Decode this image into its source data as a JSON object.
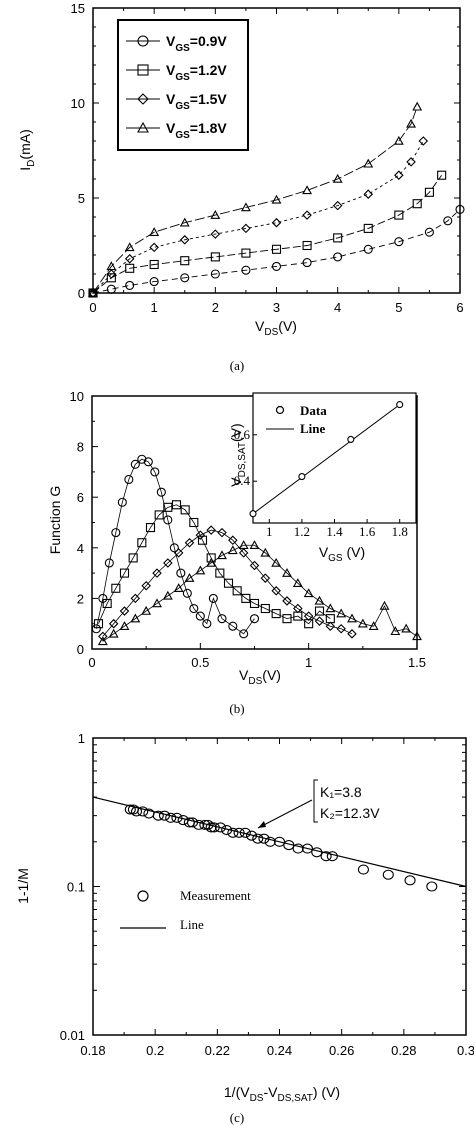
{
  "figure_captions": [
    "(a)",
    "(b)",
    "(c)"
  ],
  "chart_data": [
    {
      "id": "a",
      "type": "line",
      "xlabel": "V_DS (V)",
      "ylabel": "I_D (mA)",
      "xlim": [
        0,
        6
      ],
      "ylim": [
        0,
        15
      ],
      "xticks": [
        "0",
        "1",
        "2",
        "3",
        "4",
        "5",
        "6"
      ],
      "yticks": [
        "0",
        "5",
        "10",
        "15"
      ],
      "legend_position": "top-left",
      "series": [
        {
          "name": "V_GS=0.9V",
          "marker": "circle",
          "x": [
            0,
            0.3,
            0.6,
            1.0,
            1.5,
            2.0,
            2.5,
            3.0,
            3.5,
            4.0,
            4.5,
            5.0,
            5.5,
            5.8,
            6.0
          ],
          "y": [
            0,
            0.2,
            0.4,
            0.6,
            0.8,
            1.0,
            1.2,
            1.4,
            1.6,
            1.9,
            2.3,
            2.7,
            3.2,
            3.8,
            4.4
          ]
        },
        {
          "name": "V_GS=1.2V",
          "marker": "square",
          "x": [
            0,
            0.3,
            0.6,
            1.0,
            1.5,
            2.0,
            2.5,
            3.0,
            3.5,
            4.0,
            4.5,
            5.0,
            5.3,
            5.5,
            5.7
          ],
          "y": [
            0,
            0.8,
            1.3,
            1.5,
            1.7,
            1.9,
            2.1,
            2.3,
            2.5,
            2.9,
            3.4,
            4.1,
            4.7,
            5.3,
            6.2
          ]
        },
        {
          "name": "V_GS=1.5V",
          "marker": "diamond",
          "x": [
            0,
            0.3,
            0.6,
            1.0,
            1.5,
            2.0,
            2.5,
            3.0,
            3.5,
            4.0,
            4.5,
            5.0,
            5.2,
            5.4
          ],
          "y": [
            0,
            1.0,
            1.8,
            2.4,
            2.8,
            3.1,
            3.4,
            3.7,
            4.1,
            4.6,
            5.2,
            6.2,
            6.9,
            8.0
          ]
        },
        {
          "name": "V_GS=1.8V",
          "marker": "triangle",
          "x": [
            0,
            0.3,
            0.6,
            1.0,
            1.5,
            2.0,
            2.5,
            3.0,
            3.5,
            4.0,
            4.5,
            5.0,
            5.2,
            5.3
          ],
          "y": [
            0,
            1.4,
            2.4,
            3.2,
            3.7,
            4.1,
            4.5,
            4.9,
            5.4,
            6.0,
            6.8,
            8.0,
            8.9,
            9.8
          ]
        }
      ]
    },
    {
      "id": "b",
      "type": "scatter",
      "xlabel": "V_DS(V)",
      "ylabel": "Function G",
      "xlim": [
        0,
        1.5
      ],
      "ylim": [
        0,
        10
      ],
      "xticks": [
        "0",
        "0.5",
        "1",
        "1.5"
      ],
      "yticks": [
        "0",
        "2",
        "4",
        "6",
        "8",
        "10"
      ],
      "series": [
        {
          "marker": "circle",
          "x": [
            0.02,
            0.05,
            0.08,
            0.11,
            0.14,
            0.17,
            0.2,
            0.23,
            0.26,
            0.29,
            0.32,
            0.35,
            0.38,
            0.41,
            0.44,
            0.47,
            0.5,
            0.53,
            0.56,
            0.6,
            0.65,
            0.7,
            0.75
          ],
          "y": [
            0.8,
            2.0,
            3.4,
            4.6,
            5.8,
            6.7,
            7.3,
            7.5,
            7.4,
            7.0,
            6.2,
            5.1,
            4.0,
            3.0,
            2.2,
            1.6,
            1.3,
            1.0,
            2.0,
            1.2,
            0.9,
            0.6,
            1.2
          ]
        },
        {
          "marker": "square",
          "x": [
            0.03,
            0.07,
            0.11,
            0.15,
            0.19,
            0.23,
            0.27,
            0.31,
            0.35,
            0.39,
            0.43,
            0.47,
            0.51,
            0.55,
            0.59,
            0.63,
            0.67,
            0.71,
            0.75,
            0.8,
            0.85,
            0.9,
            0.95,
            1.0,
            1.05,
            1.1
          ],
          "y": [
            1.0,
            1.8,
            2.4,
            3.0,
            3.6,
            4.2,
            4.8,
            5.3,
            5.6,
            5.7,
            5.5,
            5.0,
            4.3,
            3.6,
            3.0,
            2.6,
            2.3,
            2.0,
            1.8,
            1.6,
            1.4,
            1.2,
            1.3,
            1.0,
            1.5,
            1.2
          ]
        },
        {
          "marker": "diamond",
          "x": [
            0.05,
            0.1,
            0.15,
            0.2,
            0.25,
            0.3,
            0.35,
            0.4,
            0.45,
            0.5,
            0.55,
            0.6,
            0.65,
            0.7,
            0.75,
            0.8,
            0.85,
            0.9,
            0.95,
            1.0,
            1.05,
            1.1,
            1.15,
            1.2
          ],
          "y": [
            0.5,
            1.0,
            1.5,
            2.0,
            2.5,
            3.0,
            3.4,
            3.8,
            4.2,
            4.5,
            4.7,
            4.6,
            4.3,
            3.8,
            3.3,
            2.8,
            2.3,
            1.9,
            1.6,
            1.3,
            1.1,
            0.9,
            0.8,
            0.6
          ]
        },
        {
          "marker": "triangle",
          "x": [
            0.05,
            0.1,
            0.15,
            0.2,
            0.25,
            0.3,
            0.35,
            0.4,
            0.45,
            0.5,
            0.55,
            0.6,
            0.65,
            0.7,
            0.75,
            0.8,
            0.85,
            0.9,
            0.95,
            1.0,
            1.05,
            1.1,
            1.15,
            1.2,
            1.25,
            1.3,
            1.35,
            1.4,
            1.45,
            1.5
          ],
          "y": [
            0.3,
            0.6,
            0.9,
            1.2,
            1.5,
            1.8,
            2.1,
            2.4,
            2.8,
            3.1,
            3.4,
            3.7,
            3.9,
            4.1,
            4.1,
            3.8,
            3.4,
            3.0,
            2.6,
            2.2,
            1.9,
            1.6,
            1.4,
            1.2,
            1.0,
            0.9,
            1.7,
            0.7,
            0.8,
            0.5
          ]
        }
      ],
      "inset": {
        "type": "scatter",
        "xlabel": "V_GS (V)",
        "ylabel": "V_DS,SAT(V)",
        "xlim": [
          0.9,
          1.9
        ],
        "ylim": [
          0.22,
          0.78
        ],
        "xticks": [
          "1",
          "1.2",
          "1.4",
          "1.6",
          "1.8"
        ],
        "yticks": [
          "0.4",
          "0.6"
        ],
        "legend": [
          "Data",
          "Line"
        ],
        "data_x": [
          0.9,
          1.2,
          1.5,
          1.8
        ],
        "data_y": [
          0.26,
          0.42,
          0.58,
          0.73
        ],
        "line_x": [
          0.9,
          1.8
        ],
        "line_y": [
          0.26,
          0.73
        ]
      }
    },
    {
      "id": "c",
      "type": "scatter",
      "xlabel": "1/(V_DS-V_DS,SAT) (V)",
      "ylabel": "1-1/M",
      "xlim": [
        0.18,
        0.3
      ],
      "ylim": [
        0.01,
        1
      ],
      "yscale": "log",
      "xticks": [
        "0.18",
        "0.2",
        "0.22",
        "0.24",
        "0.26",
        "0.28",
        "0.3"
      ],
      "yticks": [
        "0.01",
        "0.1",
        "1"
      ],
      "legend": [
        "Measurement",
        "Line"
      ],
      "annotation": [
        "K₁=3.8",
        "K₂=12.3V"
      ],
      "measurement_x": [
        0.192,
        0.193,
        0.194,
        0.196,
        0.198,
        0.201,
        0.203,
        0.205,
        0.207,
        0.209,
        0.211,
        0.212,
        0.214,
        0.216,
        0.217,
        0.218,
        0.219,
        0.221,
        0.223,
        0.225,
        0.227,
        0.229,
        0.231,
        0.233,
        0.235,
        0.237,
        0.24,
        0.243,
        0.246,
        0.249,
        0.252,
        0.255,
        0.257,
        0.267,
        0.275,
        0.282,
        0.289
      ],
      "measurement_y": [
        0.33,
        0.33,
        0.32,
        0.32,
        0.31,
        0.3,
        0.3,
        0.29,
        0.29,
        0.28,
        0.27,
        0.27,
        0.26,
        0.26,
        0.26,
        0.25,
        0.25,
        0.25,
        0.24,
        0.23,
        0.23,
        0.23,
        0.22,
        0.21,
        0.21,
        0.2,
        0.2,
        0.19,
        0.18,
        0.18,
        0.17,
        0.16,
        0.16,
        0.13,
        0.12,
        0.11,
        0.1
      ],
      "line_x": [
        0.18,
        0.3
      ],
      "line_y": [
        0.4,
        0.1
      ]
    }
  ]
}
